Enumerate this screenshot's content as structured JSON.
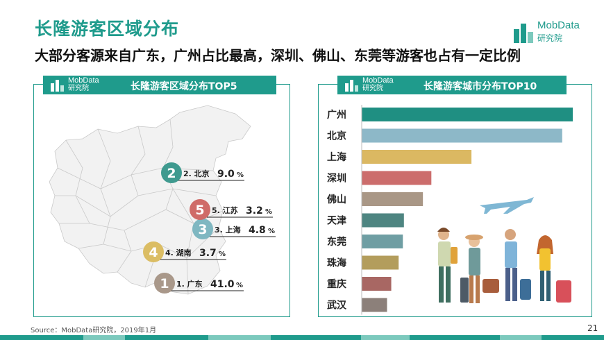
{
  "header": {
    "title": "长隆游客区域分布",
    "subtitle": "大部分客源来自广东，广州占比最高，深圳、佛山、东莞等游客也占有一定比例"
  },
  "brand": {
    "name": "MobData",
    "sub": "研究院"
  },
  "panels": {
    "left_title": "长隆游客区域分布TOP5",
    "right_title": "长隆游客城市分布TOP10"
  },
  "chart_data": [
    {
      "type": "table",
      "title": "长隆游客区域分布TOP5",
      "regions": [
        {
          "rank": "1",
          "label": "1. 广东",
          "value": "41.0",
          "unit": "%",
          "color": "#a9988a"
        },
        {
          "rank": "2",
          "label": "2. 北京",
          "value": "9.0",
          "unit": "%",
          "color": "#3f9a8f"
        },
        {
          "rank": "3",
          "label": "3. 上海",
          "value": "4.8",
          "unit": "%",
          "color": "#7fb7c1"
        },
        {
          "rank": "4",
          "label": "4. 湖南",
          "value": "3.7",
          "unit": "%",
          "color": "#dbbd64"
        },
        {
          "rank": "5",
          "label": "5. 江苏",
          "value": "3.2",
          "unit": "%",
          "color": "#cf6b68"
        }
      ]
    },
    {
      "type": "bar",
      "orientation": "horizontal",
      "title": "长隆游客城市分布TOP10",
      "categories": [
        "广州",
        "北京",
        "上海",
        "深圳",
        "佛山",
        "天津",
        "东莞",
        "珠海",
        "重庆",
        "武汉"
      ],
      "values": [
        100,
        95,
        52,
        33,
        29,
        20,
        19.5,
        17.5,
        14,
        12
      ],
      "colors": [
        "#1f8f82",
        "#8db8c8",
        "#dbb862",
        "#cc6d6c",
        "#a99786",
        "#4e8581",
        "#6f9ea3",
        "#b39d5c",
        "#a86763",
        "#8c807a"
      ]
    }
  ],
  "footer": {
    "source": "Source：MobData研究院，2019年1月",
    "page": "21"
  },
  "colors": {
    "accent": "#1f9b8c"
  }
}
